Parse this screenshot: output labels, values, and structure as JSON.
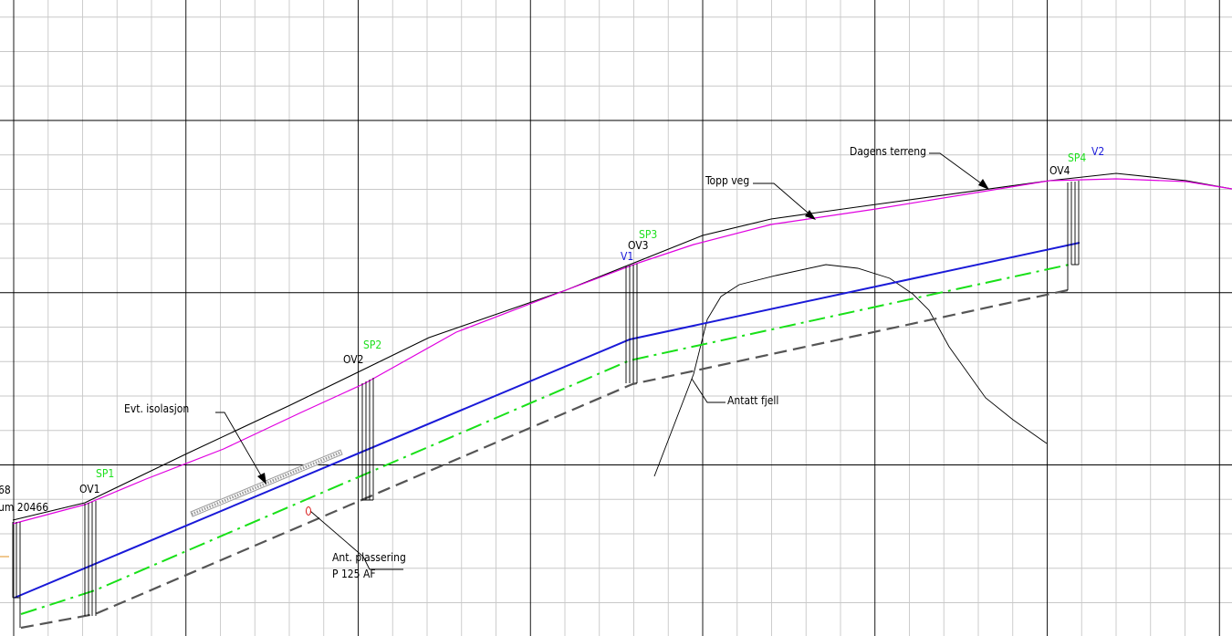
{
  "drawing": {
    "line_colors": {
      "grid_minor": "#c8c8c8",
      "grid_major": "#000000",
      "existing_terrain": "#000000",
      "road_top": "#e000e0",
      "pipe_top": "#1a1ad8",
      "pipe_centre": "#18e018",
      "pipe_bottom": "#555555",
      "bedrock": "#000000",
      "insulation": "#9a9a9a",
      "origin_tick": "#e09020"
    },
    "labels": {
      "clipped_top": "68",
      "clipped_bottom": "um 20466",
      "ov1": "OV1",
      "ov2": "OV2",
      "ov3": "OV3",
      "ov4": "OV4",
      "sp1": "SP1",
      "sp2": "SP2",
      "sp3": "SP3",
      "sp4": "SP4",
      "v1": "V1",
      "v2": "V2",
      "dagens_terreng": "Dagens terreng",
      "topp_veg": "Topp veg",
      "antatt_fjell": "Antatt fjell",
      "evt_isolasjon": "Evt. isolasjon",
      "ant_plassering": "Ant. plassering",
      "pipe_spec": "P 125 AF",
      "pump_marker": "0"
    }
  }
}
